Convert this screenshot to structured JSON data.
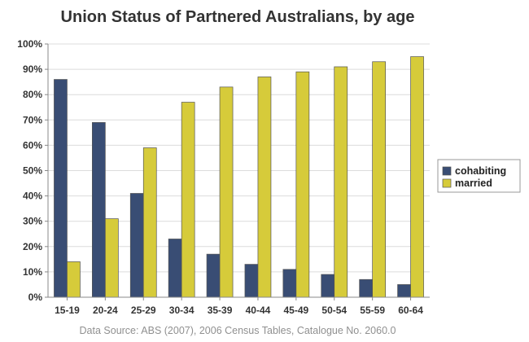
{
  "chart_data": {
    "type": "bar",
    "title": "Union Status of Partnered Australians, by age",
    "categories": [
      "15-19",
      "20-24",
      "25-29",
      "30-34",
      "35-39",
      "40-44",
      "45-49",
      "50-54",
      "55-59",
      "60-64"
    ],
    "series": [
      {
        "name": "cohabiting",
        "color": "#394d74",
        "values": [
          86,
          69,
          41,
          23,
          17,
          13,
          11,
          9,
          7,
          5
        ]
      },
      {
        "name": "married",
        "color": "#d6cb3a",
        "values": [
          14,
          31,
          59,
          77,
          83,
          87,
          89,
          91,
          93,
          95
        ]
      }
    ],
    "y_ticks": [
      "0%",
      "10%",
      "20%",
      "30%",
      "40%",
      "50%",
      "60%",
      "70%",
      "80%",
      "90%",
      "100%"
    ],
    "ylim": [
      0,
      100
    ],
    "grid": true,
    "legend_position": "right",
    "source": "Data Source: ABS (2007), 2006 Census Tables, Catalogue No. 2060.0"
  }
}
